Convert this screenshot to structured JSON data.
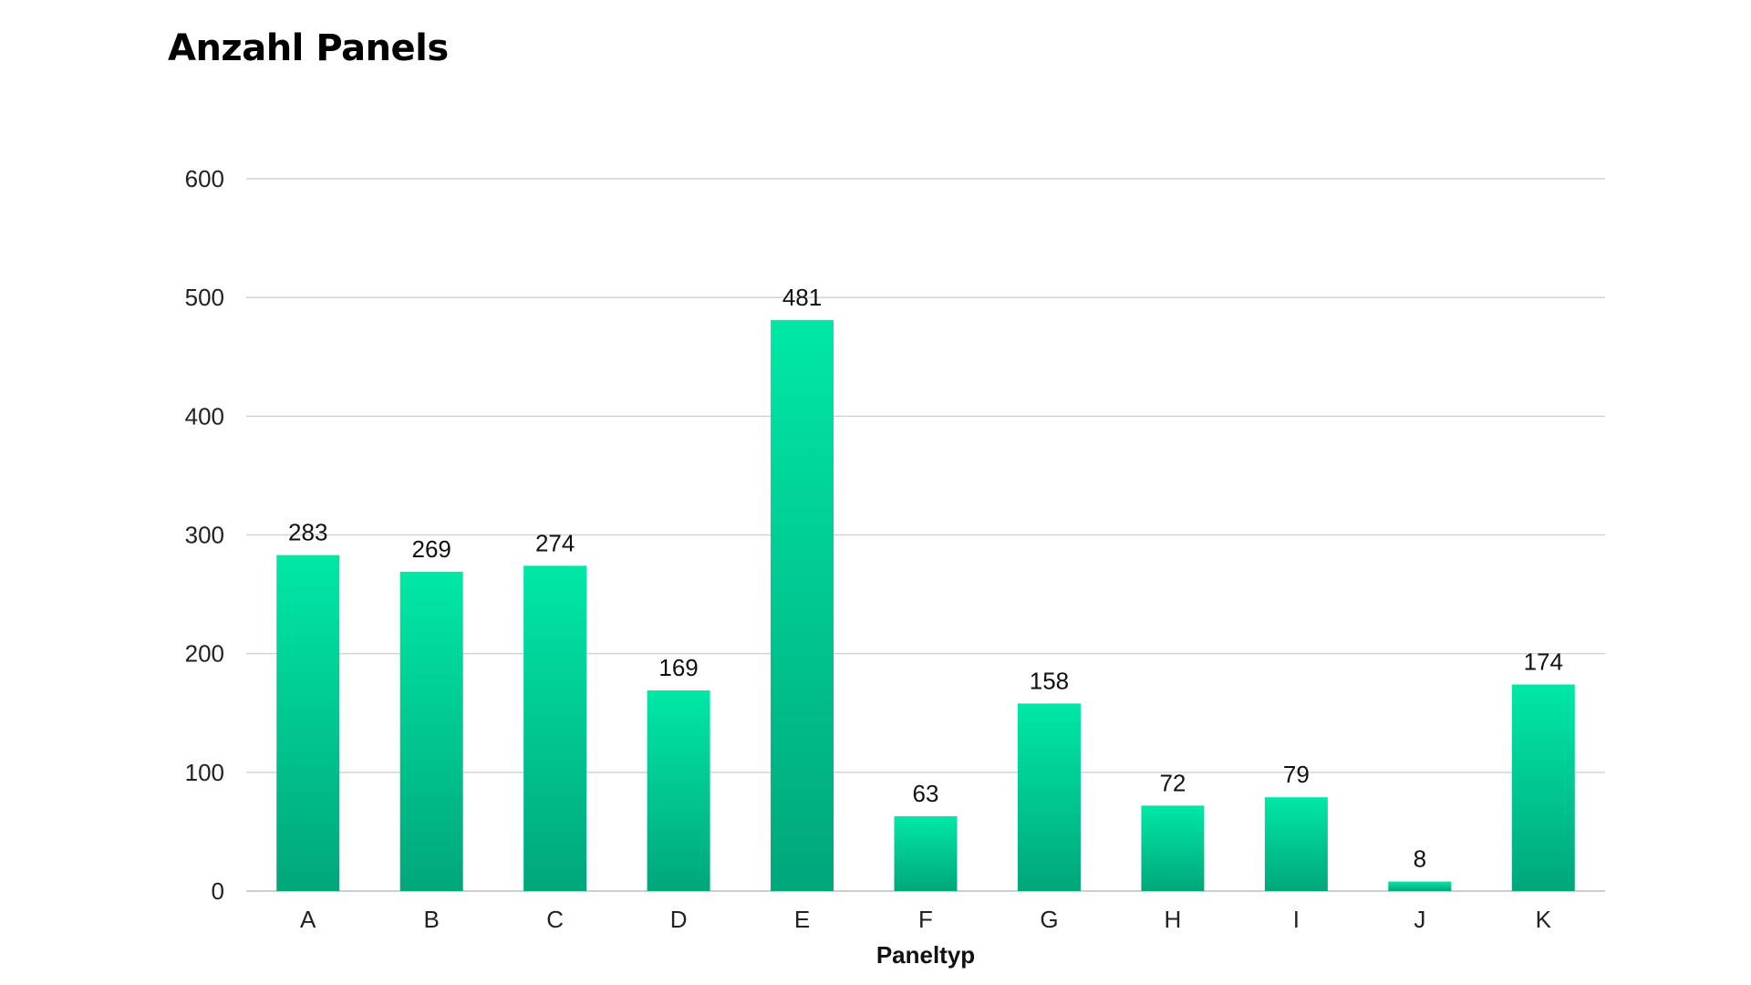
{
  "chart_data": {
    "type": "bar",
    "title": "Anzahl Panels",
    "xlabel": "Paneltyp",
    "ylabel": "",
    "categories": [
      "A",
      "B",
      "C",
      "D",
      "E",
      "F",
      "G",
      "H",
      "I",
      "J",
      "K"
    ],
    "values": [
      283,
      269,
      274,
      169,
      481,
      63,
      158,
      72,
      79,
      8,
      174
    ],
    "ylim": [
      0,
      600
    ],
    "yticks": [
      0,
      100,
      200,
      300,
      400,
      500,
      600
    ],
    "grid": true,
    "legend": "none",
    "colors": {
      "bar_top": "#00E8A5",
      "bar_bottom": "#00A77A",
      "grid": "#D3D3D3",
      "axis": "#BDBDBD"
    }
  }
}
